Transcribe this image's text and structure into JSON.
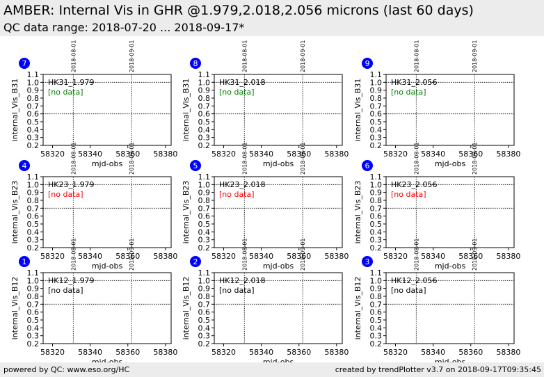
{
  "header": {
    "title": "AMBER: Internal Vis in GHR @1.979,2.018,2.056 microns (last 60 days)",
    "subtitle": "QC data range: 2018-07-20 ... 2018-09-17*"
  },
  "footer": {
    "left": "powered by QC: www.eso.org/HC",
    "right": "created by trendPlotter v3.7 on 2018-09-17T09:35:45"
  },
  "colors": {
    "header_bg": "#ececec",
    "badge": "#0000ff",
    "no_data_green": "#008000",
    "no_data_red": "#ff0000",
    "no_data_black": "#000000"
  },
  "chart_data": [
    {
      "type": "scatter",
      "panel_number": "7",
      "label": "HK31_1.979",
      "status": "[no data]",
      "status_color": "#008000",
      "ylabel": "internal_Vis_B31",
      "xlabel": "mjd-obs",
      "xlim": [
        58315,
        58383
      ],
      "ylim": [
        0.2,
        1.1
      ],
      "xticks": [
        "58320",
        "58340",
        "58360",
        "58380"
      ],
      "yticks": [
        "0.2",
        "0.3",
        "0.4",
        "0.5",
        "0.6",
        "0.7",
        "0.8",
        "0.9",
        "1.0",
        "1.1"
      ],
      "ref_lines": [
        0.6,
        1.0
      ],
      "date_markers": [
        {
          "mjd": 58331,
          "label": "2018-08-01"
        },
        {
          "mjd": 58362,
          "label": "2018-09-01"
        }
      ],
      "series": []
    },
    {
      "type": "scatter",
      "panel_number": "8",
      "label": "HK31_2.018",
      "status": "[no data]",
      "status_color": "#008000",
      "ylabel": "internal_Vis_B31",
      "xlabel": "mjd-obs",
      "xlim": [
        58315,
        58383
      ],
      "ylim": [
        0.2,
        1.1
      ],
      "xticks": [
        "58320",
        "58340",
        "58360",
        "58380"
      ],
      "yticks": [
        "0.2",
        "0.3",
        "0.4",
        "0.5",
        "0.6",
        "0.7",
        "0.8",
        "0.9",
        "1.0",
        "1.1"
      ],
      "ref_lines": [
        0.6,
        1.0
      ],
      "date_markers": [
        {
          "mjd": 58331,
          "label": "2018-08-01"
        },
        {
          "mjd": 58362,
          "label": "2018-09-01"
        }
      ],
      "series": []
    },
    {
      "type": "scatter",
      "panel_number": "9",
      "label": "HK31_2.056",
      "status": "[no data]",
      "status_color": "#008000",
      "ylabel": "internal_Vis_B31",
      "xlabel": "mjd-obs",
      "xlim": [
        58315,
        58383
      ],
      "ylim": [
        0.2,
        1.1
      ],
      "xticks": [
        "58320",
        "58340",
        "58360",
        "58380"
      ],
      "yticks": [
        "0.2",
        "0.3",
        "0.4",
        "0.5",
        "0.6",
        "0.7",
        "0.8",
        "0.9",
        "1.0",
        "1.1"
      ],
      "ref_lines": [
        0.6,
        1.0
      ],
      "date_markers": [
        {
          "mjd": 58331,
          "label": "2018-08-01"
        },
        {
          "mjd": 58362,
          "label": "2018-09-01"
        }
      ],
      "series": []
    },
    {
      "type": "scatter",
      "panel_number": "4",
      "label": "HK23_1.979",
      "status": "[no data]",
      "status_color": "#ff0000",
      "ylabel": "internal_Vis_B23",
      "xlabel": "mjd-obs",
      "xlim": [
        58315,
        58383
      ],
      "ylim": [
        0.2,
        1.1
      ],
      "xticks": [
        "58320",
        "58340",
        "58360",
        "58380"
      ],
      "yticks": [
        "0.2",
        "0.3",
        "0.4",
        "0.5",
        "0.6",
        "0.7",
        "0.8",
        "0.9",
        "1.0",
        "1.1"
      ],
      "ref_lines": [
        0.7,
        1.0
      ],
      "date_markers": [
        {
          "mjd": 58331,
          "label": "2018-08-01"
        },
        {
          "mjd": 58362,
          "label": "2018-09-01"
        }
      ],
      "series": []
    },
    {
      "type": "scatter",
      "panel_number": "5",
      "label": "HK23_2.018",
      "status": "[no data]",
      "status_color": "#ff0000",
      "ylabel": "internal_Vis_B23",
      "xlabel": "mjd-obs",
      "xlim": [
        58315,
        58383
      ],
      "ylim": [
        0.2,
        1.1
      ],
      "xticks": [
        "58320",
        "58340",
        "58360",
        "58380"
      ],
      "yticks": [
        "0.2",
        "0.3",
        "0.4",
        "0.5",
        "0.6",
        "0.7",
        "0.8",
        "0.9",
        "1.0",
        "1.1"
      ],
      "ref_lines": [
        0.7,
        1.0
      ],
      "date_markers": [
        {
          "mjd": 58331,
          "label": "2018-08-01"
        },
        {
          "mjd": 58362,
          "label": "2018-09-01"
        }
      ],
      "series": []
    },
    {
      "type": "scatter",
      "panel_number": "6",
      "label": "HK23_2.056",
      "status": "[no data]",
      "status_color": "#ff0000",
      "ylabel": "internal_Vis_B23",
      "xlabel": "mjd-obs",
      "xlim": [
        58315,
        58383
      ],
      "ylim": [
        0.2,
        1.1
      ],
      "xticks": [
        "58320",
        "58340",
        "58360",
        "58380"
      ],
      "yticks": [
        "0.2",
        "0.3",
        "0.4",
        "0.5",
        "0.6",
        "0.7",
        "0.8",
        "0.9",
        "1.0",
        "1.1"
      ],
      "ref_lines": [
        0.7,
        1.0
      ],
      "date_markers": [
        {
          "mjd": 58331,
          "label": "2018-08-01"
        },
        {
          "mjd": 58362,
          "label": "2018-09-01"
        }
      ],
      "series": []
    },
    {
      "type": "scatter",
      "panel_number": "1",
      "label": "HK12_1.979",
      "status": "[no data]",
      "status_color": "#000000",
      "ylabel": "internal_Vis_B12",
      "xlabel": "mjd-obs",
      "xlim": [
        58315,
        58383
      ],
      "ylim": [
        0.2,
        1.1
      ],
      "xticks": [
        "58320",
        "58340",
        "58360",
        "58380"
      ],
      "yticks": [
        "0.2",
        "0.3",
        "0.4",
        "0.5",
        "0.6",
        "0.7",
        "0.8",
        "0.9",
        "1.0",
        "1.1"
      ],
      "ref_lines": [
        0.7,
        1.0
      ],
      "date_markers": [
        {
          "mjd": 58331,
          "label": "2018-08-01"
        },
        {
          "mjd": 58362,
          "label": "2018-09-01"
        }
      ],
      "series": []
    },
    {
      "type": "scatter",
      "panel_number": "2",
      "label": "HK12_2.018",
      "status": "[no data]",
      "status_color": "#000000",
      "ylabel": "internal_Vis_B12",
      "xlabel": "mjd-obs",
      "xlim": [
        58315,
        58383
      ],
      "ylim": [
        0.2,
        1.1
      ],
      "xticks": [
        "58320",
        "58340",
        "58360",
        "58380"
      ],
      "yticks": [
        "0.2",
        "0.3",
        "0.4",
        "0.5",
        "0.6",
        "0.7",
        "0.8",
        "0.9",
        "1.0",
        "1.1"
      ],
      "ref_lines": [
        0.7,
        1.0
      ],
      "date_markers": [
        {
          "mjd": 58331,
          "label": "2018-08-01"
        },
        {
          "mjd": 58362,
          "label": "2018-09-01"
        }
      ],
      "series": []
    },
    {
      "type": "scatter",
      "panel_number": "3",
      "label": "HK12_2.056",
      "status": "[no data]",
      "status_color": "#000000",
      "ylabel": "internal_Vis_B12",
      "xlabel": "mjd-obs",
      "xlim": [
        58315,
        58383
      ],
      "ylim": [
        0.2,
        1.1
      ],
      "xticks": [
        "58320",
        "58340",
        "58360",
        "58380"
      ],
      "yticks": [
        "0.2",
        "0.3",
        "0.4",
        "0.5",
        "0.6",
        "0.7",
        "0.8",
        "0.9",
        "1.0",
        "1.1"
      ],
      "ref_lines": [
        0.7,
        1.0
      ],
      "date_markers": [
        {
          "mjd": 58331,
          "label": "2018-08-01"
        },
        {
          "mjd": 58362,
          "label": "2018-09-01"
        }
      ],
      "series": []
    }
  ]
}
